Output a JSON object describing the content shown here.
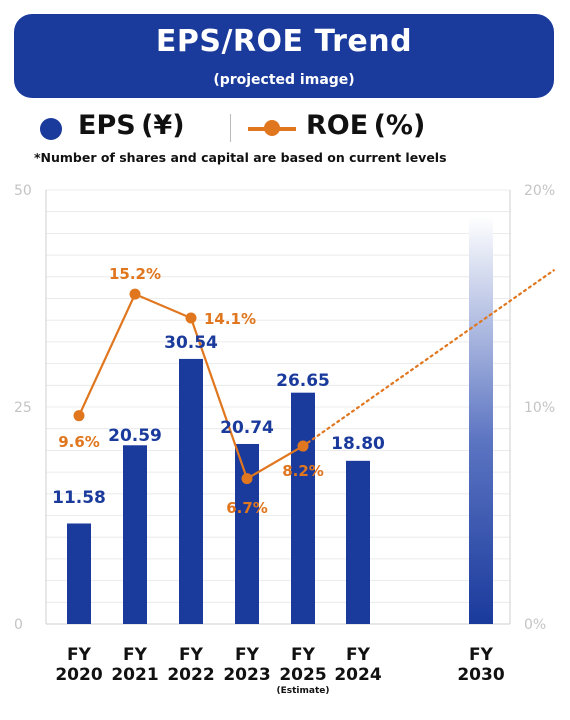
{
  "header": {
    "title": "EPS/ROE Trend",
    "subtitle": "(projected image)"
  },
  "legend": {
    "eps_label": "EPS (¥)",
    "roe_label": "ROE (%)"
  },
  "note": "*Number of shares and capital are based on current levels",
  "colors": {
    "eps_bar": "#1a3a9c",
    "roe_line": "#e0761e",
    "grid": "#e6e6e6",
    "axis_tick": "#cfcfcf"
  },
  "chart_data": {
    "type": "bar",
    "categories": [
      {
        "line1": "FY",
        "line2": "2020",
        "sub": ""
      },
      {
        "line1": "FY",
        "line2": "2021",
        "sub": ""
      },
      {
        "line1": "FY",
        "line2": "2022",
        "sub": ""
      },
      {
        "line1": "FY",
        "line2": "2023",
        "sub": ""
      },
      {
        "line1": "FY",
        "line2": "2025",
        "sub": "(Estimate)"
      },
      {
        "line1": "FY",
        "line2": "2024",
        "sub": ""
      },
      {
        "line1": "FY",
        "line2": "2030",
        "sub": ""
      }
    ],
    "series": [
      {
        "name": "EPS (¥)",
        "axis": "left",
        "values": [
          11.58,
          20.59,
          30.54,
          20.74,
          26.65,
          18.8,
          47
        ],
        "labels": [
          "11.58",
          "20.59",
          "30.54",
          "20.74",
          "26.65",
          "18.80",
          ""
        ],
        "gradient_last": true
      },
      {
        "name": "ROE (%)",
        "axis": "right",
        "type": "line",
        "points": [
          {
            "index": 0,
            "value": 9.6,
            "label": "9.6%"
          },
          {
            "index": 1,
            "value": 15.2,
            "label": "15.2%"
          },
          {
            "index": 2,
            "value": 14.1,
            "label": "14.1%"
          },
          {
            "index": 3,
            "value": 6.7,
            "label": "6.7%"
          },
          {
            "index": 4,
            "value": 8.2,
            "label": "8.2%"
          }
        ],
        "projection_end": {
          "index": 7.3,
          "value": 16.3
        }
      }
    ],
    "y_left": {
      "min": 0,
      "max": 50,
      "ticks": [
        "0",
        "25",
        "50"
      ],
      "tick_values": [
        0,
        25,
        50
      ]
    },
    "y_right": {
      "min": 0,
      "max": 20,
      "ticks": [
        "0%",
        "10%",
        "20%"
      ],
      "tick_values": [
        0,
        10,
        20
      ]
    },
    "grid": true
  }
}
